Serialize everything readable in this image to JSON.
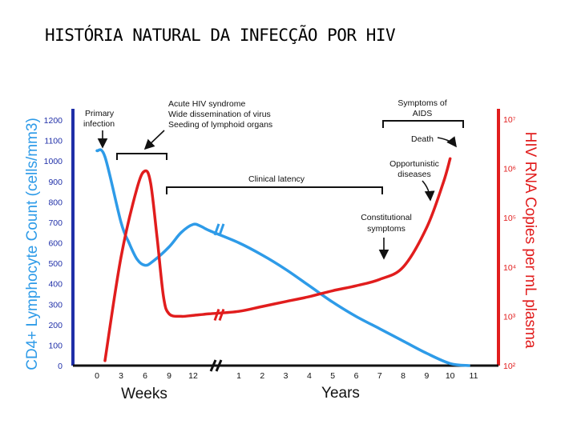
{
  "slide": {
    "title": "HISTÓRIA NATURAL DA INFECÇÃO POR HIV"
  },
  "colors": {
    "cd4": "#2e9be8",
    "rna": "#e11d1d",
    "left_axis": "#1f2fa8",
    "text": "#111111"
  },
  "chart_data": {
    "type": "line",
    "title": "",
    "y_left": {
      "label": "CD4+ Lymphocyte Count (cells/mm3)",
      "range": [
        0,
        1200
      ],
      "ticks": [
        0,
        100,
        200,
        300,
        400,
        500,
        600,
        700,
        800,
        900,
        1000,
        1100,
        1200
      ]
    },
    "y_right": {
      "label": "HIV RNA Copies per mL plasma",
      "ticks": [
        "10²",
        "10³",
        "10⁴",
        "10⁵",
        "10⁶",
        "10⁷"
      ],
      "log_range": [
        2,
        7
      ]
    },
    "x": {
      "weeks_label": "Weeks",
      "years_label": "Years",
      "week_ticks": [
        "0",
        "3",
        "6",
        "9",
        "12"
      ],
      "year_ticks": [
        "1",
        "2",
        "3",
        "4",
        "5",
        "6",
        "7",
        "8",
        "9",
        "10",
        "11"
      ]
    },
    "series": [
      {
        "name": "CD4+ Lymphocyte Count",
        "axis": "left",
        "points": [
          [
            "0w",
            1050
          ],
          [
            "1w",
            1020
          ],
          [
            "3w",
            700
          ],
          [
            "4w",
            600
          ],
          [
            "5w",
            520
          ],
          [
            "6w",
            490
          ],
          [
            "7w",
            510
          ],
          [
            "9w",
            580
          ],
          [
            "10.5w",
            650
          ],
          [
            "12w",
            690
          ],
          [
            "13w",
            680
          ],
          [
            "14w",
            660
          ],
          [
            "1y",
            600
          ],
          [
            "2y",
            540
          ],
          [
            "3y",
            470
          ],
          [
            "4y",
            390
          ],
          [
            "5y",
            310
          ],
          [
            "6y",
            240
          ],
          [
            "7y",
            180
          ],
          [
            "8y",
            120
          ],
          [
            "9y",
            60
          ],
          [
            "10y",
            10
          ],
          [
            "10.8y",
            0
          ]
        ]
      },
      {
        "name": "HIV RNA Copies",
        "axis": "right",
        "points": [
          [
            "1w",
            2.1
          ],
          [
            "3w",
            4.2
          ],
          [
            "5w",
            5.6
          ],
          [
            "6w",
            5.95
          ],
          [
            "6.7w",
            5.7
          ],
          [
            "7.5w",
            4.6
          ],
          [
            "8.3w",
            3.4
          ],
          [
            "9w",
            3.05
          ],
          [
            "10.5w",
            3.0
          ],
          [
            "12w",
            3.02
          ],
          [
            "14w",
            3.05
          ],
          [
            "1y",
            3.1
          ],
          [
            "2y",
            3.2
          ],
          [
            "3y",
            3.3
          ],
          [
            "4y",
            3.4
          ],
          [
            "5y",
            3.52
          ],
          [
            "6y",
            3.62
          ],
          [
            "7y",
            3.75
          ],
          [
            "8y",
            4.0
          ],
          [
            "9y",
            4.8
          ],
          [
            "9.7y",
            5.7
          ],
          [
            "10y",
            6.2
          ]
        ]
      }
    ],
    "annotations": {
      "primary": [
        "Primary",
        "infection"
      ],
      "acute": [
        "Acute HIV syndrome",
        "Wide dissemination of virus",
        "Seeding of lymphoid organs"
      ],
      "latency": "Clinical latency",
      "symptoms_aids": [
        "Symptoms of",
        "AIDS"
      ],
      "death": "Death",
      "opportunistic": [
        "Opportunistic",
        "diseases"
      ],
      "constitutional": [
        "Constitutional",
        "symptoms"
      ]
    }
  }
}
